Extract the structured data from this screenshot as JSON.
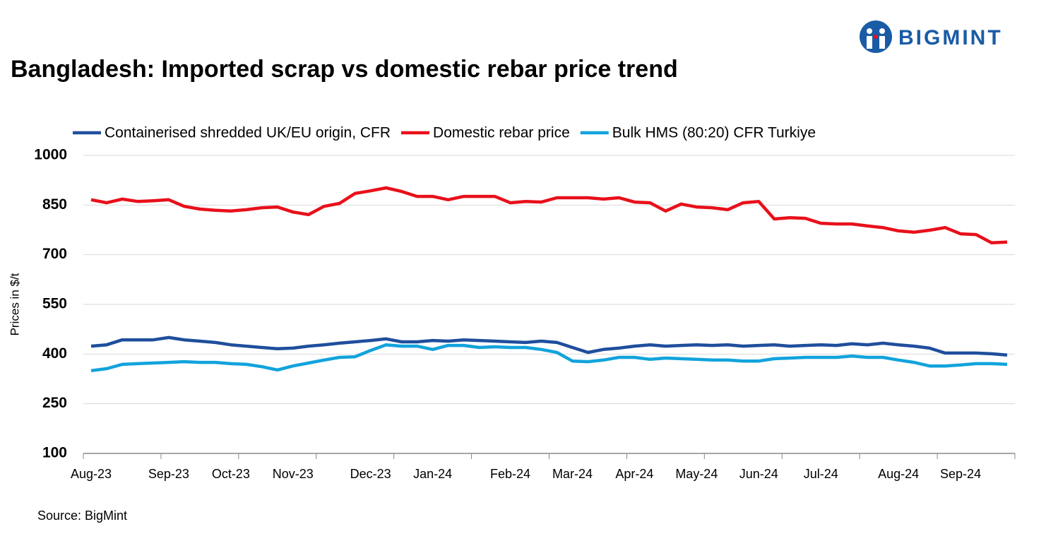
{
  "logo": "BIGMINT",
  "chart_data": {
    "type": "line",
    "title": "Bangladesh: Imported scrap vs domestic rebar price trend",
    "y_label": "Prices in $/t",
    "source": "Source: BigMint",
    "categories": [
      "Aug-23",
      null,
      null,
      null,
      null,
      "Sep-23",
      null,
      null,
      null,
      "Oct-23",
      null,
      null,
      null,
      "Nov-23",
      null,
      null,
      null,
      null,
      "Dec-23",
      null,
      null,
      null,
      "Jan-24",
      null,
      null,
      null,
      null,
      "Feb-24",
      null,
      null,
      null,
      "Mar-24",
      null,
      null,
      null,
      "Apr-24",
      null,
      null,
      null,
      "May-24",
      null,
      null,
      null,
      "Jun-24",
      null,
      null,
      null,
      "Jul-24",
      null,
      null,
      null,
      null,
      "Aug-24",
      null,
      null,
      null,
      "Sep-24",
      null,
      null,
      null
    ],
    "series": [
      {
        "name": "Containerised shredded UK/EU origin, CFR",
        "color": "#1f4e9c",
        "values": [
          424,
          428,
          443,
          443,
          443,
          450,
          443,
          439,
          435,
          428,
          424,
          420,
          416,
          418,
          424,
          428,
          433,
          437,
          441,
          446,
          437,
          437,
          441,
          439,
          443,
          441,
          439,
          437,
          435,
          439,
          435,
          420,
          405,
          414,
          418,
          424,
          428,
          424,
          426,
          428,
          426,
          428,
          424,
          426,
          428,
          424,
          426,
          428,
          426,
          431,
          428,
          433,
          428,
          424,
          418,
          403,
          403,
          403,
          401,
          397
        ]
      },
      {
        "name": "Domestic rebar price",
        "color": "#e8101a",
        "values": [
          866,
          857,
          868,
          861,
          863,
          866,
          846,
          838,
          834,
          832,
          836,
          842,
          844,
          829,
          821,
          846,
          855,
          885,
          893,
          902,
          891,
          876,
          876,
          866,
          876,
          876,
          876,
          857,
          861,
          859,
          872,
          872,
          872,
          868,
          872,
          859,
          857,
          832,
          853,
          844,
          842,
          836,
          857,
          861,
          808,
          812,
          810,
          795,
          793,
          793,
          787,
          782,
          772,
          768,
          774,
          782,
          763,
          761,
          736,
          738
        ]
      },
      {
        "name": "Bulk HMS (80:20) CFR Turkiye",
        "color": "#12a3dc",
        "values": [
          350,
          356,
          369,
          371,
          373,
          375,
          377,
          375,
          375,
          371,
          369,
          362,
          352,
          364,
          373,
          382,
          390,
          392,
          411,
          428,
          424,
          424,
          414,
          426,
          426,
          420,
          422,
          420,
          420,
          414,
          405,
          379,
          377,
          382,
          390,
          390,
          384,
          388,
          386,
          384,
          382,
          382,
          379,
          379,
          386,
          388,
          390,
          390,
          390,
          394,
          390,
          390,
          382,
          375,
          364,
          364,
          367,
          371,
          371,
          369
        ]
      }
    ],
    "ylim": [
      100,
      1000
    ],
    "yticks": [
      100,
      250,
      400,
      550,
      700,
      850,
      1000
    ],
    "grid": true
  }
}
